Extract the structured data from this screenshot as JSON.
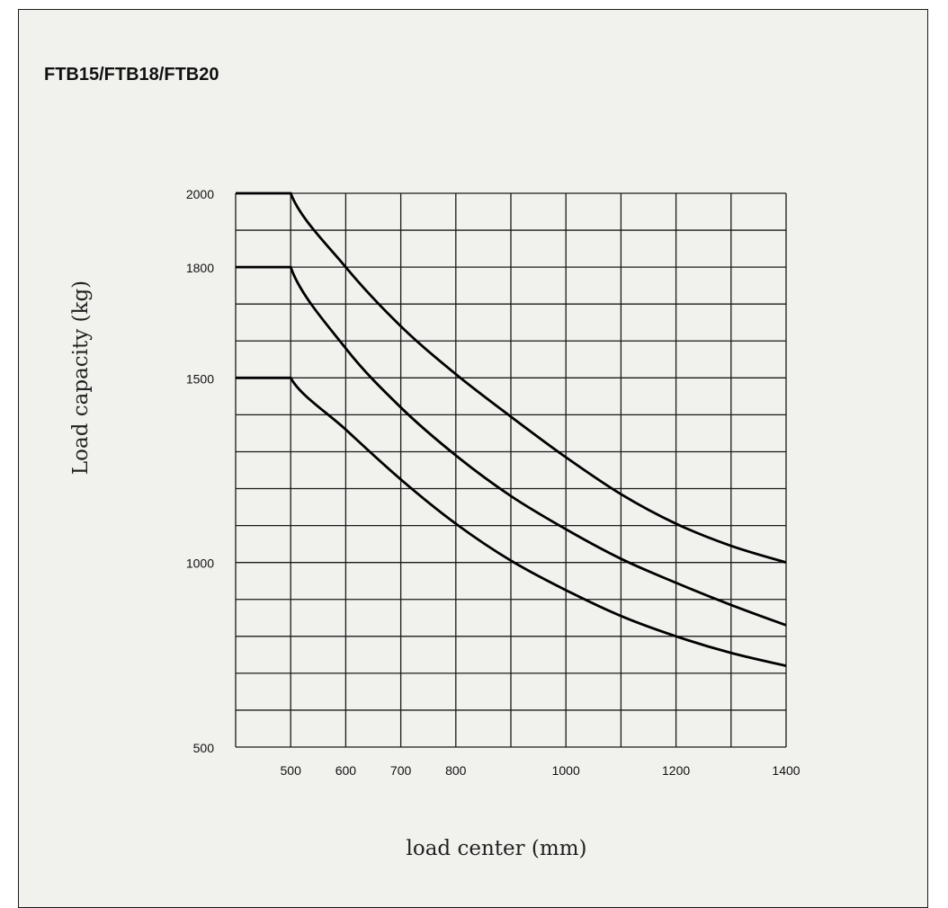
{
  "chart_data": {
    "type": "line",
    "title": "FTB15/FTB18/FTB20",
    "xlabel": "load center (mm)",
    "ylabel": "Load capacity (kg)",
    "x_ticks": [
      "500",
      "600",
      "700",
      "800",
      "1000",
      "1200",
      "1400"
    ],
    "y_ticks": [
      "500",
      "1000",
      "1500",
      "1800",
      "2000"
    ],
    "grid": true,
    "series": [
      {
        "rated": 2000,
        "x": [
          400,
          500,
          600,
          700,
          800,
          900,
          1000,
          1100,
          1200,
          1300,
          1400
        ],
        "y": [
          2000,
          2000,
          1800,
          1640,
          1510,
          1395,
          1285,
          1185,
          1105,
          1045,
          1000
        ]
      },
      {
        "rated": 1800,
        "x": [
          400,
          500,
          600,
          700,
          800,
          900,
          1000,
          1100,
          1200,
          1300,
          1400
        ],
        "y": [
          1800,
          1800,
          1580,
          1420,
          1290,
          1180,
          1090,
          1010,
          945,
          885,
          830
        ]
      },
      {
        "rated": 1500,
        "x": [
          400,
          500,
          600,
          700,
          800,
          900,
          1000,
          1100,
          1200,
          1300,
          1400
        ],
        "y": [
          1500,
          1500,
          1360,
          1225,
          1105,
          1005,
          925,
          855,
          800,
          755,
          720
        ]
      }
    ]
  }
}
